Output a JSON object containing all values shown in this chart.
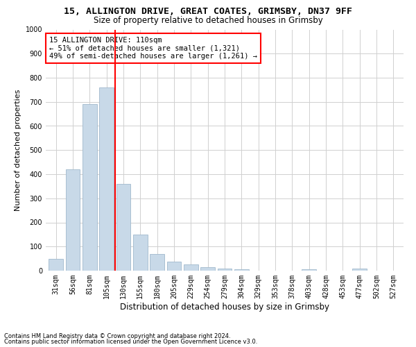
{
  "title_line1": "15, ALLINGTON DRIVE, GREAT COATES, GRIMSBY, DN37 9FF",
  "title_line2": "Size of property relative to detached houses in Grimsby",
  "xlabel": "Distribution of detached houses by size in Grimsby",
  "ylabel": "Number of detached properties",
  "footnote1": "Contains HM Land Registry data © Crown copyright and database right 2024.",
  "footnote2": "Contains public sector information licensed under the Open Government Licence v3.0.",
  "annotation_line1": "15 ALLINGTON DRIVE: 110sqm",
  "annotation_line2": "← 51% of detached houses are smaller (1,321)",
  "annotation_line3": "49% of semi-detached houses are larger (1,261) →",
  "bar_color": "#c8d9e8",
  "bar_edge_color": "#a0b8cc",
  "vline_color": "red",
  "vline_x": 3.5,
  "categories": [
    "31sqm",
    "56sqm",
    "81sqm",
    "105sqm",
    "130sqm",
    "155sqm",
    "180sqm",
    "205sqm",
    "229sqm",
    "254sqm",
    "279sqm",
    "304sqm",
    "329sqm",
    "353sqm",
    "378sqm",
    "403sqm",
    "428sqm",
    "453sqm",
    "477sqm",
    "502sqm",
    "527sqm"
  ],
  "values": [
    50,
    420,
    690,
    760,
    360,
    150,
    70,
    38,
    25,
    15,
    10,
    6,
    0,
    0,
    0,
    5,
    0,
    0,
    8,
    0,
    0
  ],
  "ylim": [
    0,
    1000
  ],
  "yticks": [
    0,
    100,
    200,
    300,
    400,
    500,
    600,
    700,
    800,
    900,
    1000
  ],
  "background_color": "#ffffff",
  "grid_color": "#d0d0d0",
  "title1_fontsize": 9.5,
  "title2_fontsize": 8.5,
  "xlabel_fontsize": 8.5,
  "ylabel_fontsize": 8,
  "tick_fontsize": 7,
  "annotation_fontsize": 7.5,
  "footnote_fontsize": 6
}
